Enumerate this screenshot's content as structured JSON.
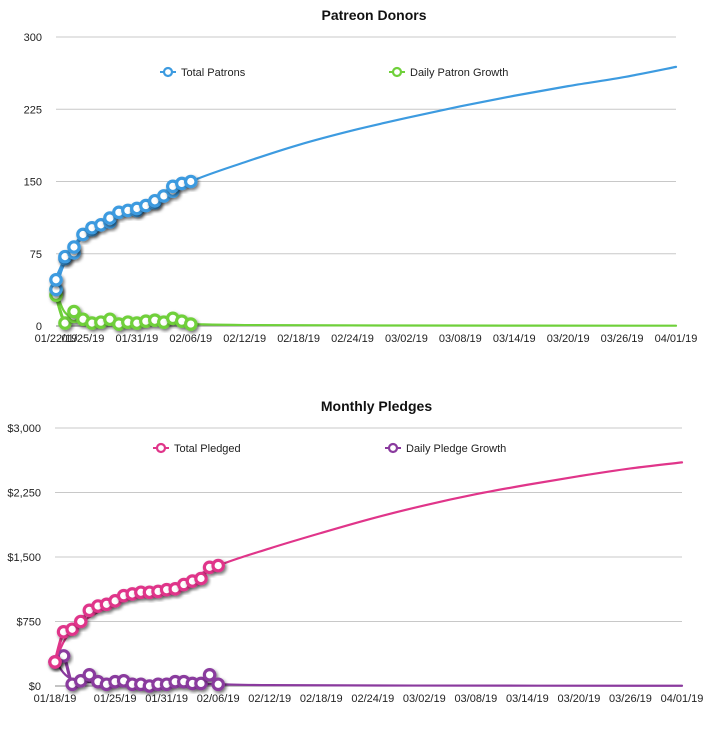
{
  "chart_data": [
    {
      "type": "line",
      "title": "Patreon Donors",
      "xlabel": "",
      "ylabel": "",
      "ylim": [
        0,
        300
      ],
      "yticks": [
        "0",
        "75",
        "150",
        "225",
        "300"
      ],
      "ytick_values": [
        0,
        75,
        150,
        225,
        300
      ],
      "xlim": [
        "2019-01-22",
        "2019-04-01"
      ],
      "xticks": [
        "01/22/19",
        "01/25/19",
        "01/31/19",
        "02/06/19",
        "02/12/19",
        "02/18/19",
        "02/24/19",
        "03/02/19",
        "03/08/19",
        "03/14/19",
        "03/20/19",
        "03/26/19",
        "04/01/19"
      ],
      "xtick_dates": [
        "2019-01-22",
        "2019-01-25",
        "2019-01-31",
        "2019-02-06",
        "2019-02-12",
        "2019-02-18",
        "2019-02-24",
        "2019-03-02",
        "2019-03-08",
        "2019-03-14",
        "2019-03-20",
        "2019-03-26",
        "2019-04-01"
      ],
      "grid": true,
      "legend": "top",
      "series": [
        {
          "name": "Total Patrons",
          "color": "#3d9be0",
          "x": [
            "2019-01-22",
            "2019-01-22",
            "2019-01-23",
            "2019-01-23",
            "2019-01-24",
            "2019-01-24",
            "2019-01-25",
            "2019-01-26",
            "2019-01-26",
            "2019-01-27",
            "2019-01-28",
            "2019-01-28",
            "2019-01-29",
            "2019-01-30",
            "2019-01-31",
            "2019-01-31",
            "2019-02-01",
            "2019-02-02",
            "2019-02-02",
            "2019-02-03",
            "2019-02-04",
            "2019-02-04",
            "2019-02-05",
            "2019-02-06"
          ],
          "y": [
            38,
            48,
            70,
            72,
            76,
            82,
            95,
            100,
            102,
            105,
            108,
            112,
            118,
            120,
            120,
            122,
            125,
            128,
            130,
            135,
            140,
            145,
            148,
            150
          ],
          "trend": {
            "x": [
              "2019-01-22",
              "2019-01-23",
              "2019-01-25",
              "2019-01-28",
              "2019-02-01",
              "2019-02-06",
              "2019-02-12",
              "2019-02-18",
              "2019-02-24",
              "2019-03-02",
              "2019-03-08",
              "2019-03-14",
              "2019-03-20",
              "2019-03-26",
              "2019-04-01"
            ],
            "y": [
              38,
              66,
              92,
              110,
              126,
              150,
              170,
              188,
              203,
              216,
              228,
              239,
              249,
              258,
              269
            ]
          }
        },
        {
          "name": "Daily Patron Growth",
          "color": "#6fd03a",
          "x": [
            "2019-01-22",
            "2019-01-22",
            "2019-01-23",
            "2019-01-24",
            "2019-01-24",
            "2019-01-25",
            "2019-01-26",
            "2019-01-27",
            "2019-01-28",
            "2019-01-29",
            "2019-01-30",
            "2019-01-31",
            "2019-02-01",
            "2019-02-02",
            "2019-02-03",
            "2019-02-04",
            "2019-02-05",
            "2019-02-06"
          ],
          "y": [
            38,
            32,
            3,
            10,
            15,
            7,
            3,
            4,
            7,
            2,
            4,
            3,
            5,
            6,
            4,
            8,
            5,
            2
          ],
          "trend": {
            "x": [
              "2019-01-22",
              "2019-01-23",
              "2019-01-25",
              "2019-01-28",
              "2019-02-01",
              "2019-02-06",
              "2019-02-12",
              "2019-03-01",
              "2019-04-01"
            ],
            "y": [
              38,
              14,
              6,
              4,
              3,
              2,
              1,
              0.5,
              0.3
            ]
          }
        }
      ]
    },
    {
      "type": "line",
      "title": "Monthly Pledges",
      "xlabel": "",
      "ylabel": "",
      "ylim": [
        0,
        3000
      ],
      "yticks": [
        "$0",
        "$750",
        "$1,500",
        "$2,250",
        "$3,000"
      ],
      "ytick_values": [
        0,
        750,
        1500,
        2250,
        3000
      ],
      "xlim": [
        "2019-01-18",
        "2019-04-01"
      ],
      "xticks": [
        "01/18/19",
        "01/25/19",
        "01/31/19",
        "02/06/19",
        "02/12/19",
        "02/18/19",
        "02/24/19",
        "03/02/19",
        "03/08/19",
        "03/14/19",
        "03/20/19",
        "03/26/19",
        "04/01/19"
      ],
      "xtick_dates": [
        "2019-01-18",
        "2019-01-25",
        "2019-01-31",
        "2019-02-06",
        "2019-02-12",
        "2019-02-18",
        "2019-02-24",
        "2019-03-02",
        "2019-03-08",
        "2019-03-14",
        "2019-03-20",
        "2019-03-26",
        "2019-04-01"
      ],
      "grid": true,
      "legend": "top",
      "series": [
        {
          "name": "Total Pledged",
          "color": "#e0358a",
          "x": [
            "2019-01-18",
            "2019-01-19",
            "2019-01-20",
            "2019-01-21",
            "2019-01-22",
            "2019-01-23",
            "2019-01-24",
            "2019-01-25",
            "2019-01-26",
            "2019-01-27",
            "2019-01-28",
            "2019-01-29",
            "2019-01-30",
            "2019-01-31",
            "2019-02-01",
            "2019-02-02",
            "2019-02-03",
            "2019-02-04",
            "2019-02-05",
            "2019-02-06"
          ],
          "y": [
            280,
            630,
            660,
            750,
            880,
            930,
            950,
            990,
            1050,
            1070,
            1090,
            1090,
            1100,
            1120,
            1130,
            1180,
            1220,
            1250,
            1380,
            1400
          ],
          "trend": {
            "x": [
              "2019-01-18",
              "2019-01-20",
              "2019-01-25",
              "2019-01-31",
              "2019-02-06",
              "2019-02-12",
              "2019-02-18",
              "2019-02-24",
              "2019-03-02",
              "2019-03-08",
              "2019-03-14",
              "2019-03-20",
              "2019-03-26",
              "2019-04-01"
            ],
            "y": [
              280,
              650,
              960,
              1120,
              1400,
              1600,
              1780,
              1950,
              2100,
              2230,
              2340,
              2440,
              2530,
              2600
            ]
          }
        },
        {
          "name": "Daily Pledge Growth",
          "color": "#8a3a9e",
          "x": [
            "2019-01-18",
            "2019-01-19",
            "2019-01-20",
            "2019-01-21",
            "2019-01-22",
            "2019-01-23",
            "2019-01-24",
            "2019-01-25",
            "2019-01-26",
            "2019-01-27",
            "2019-01-28",
            "2019-01-29",
            "2019-01-30",
            "2019-01-31",
            "2019-02-01",
            "2019-02-02",
            "2019-02-03",
            "2019-02-04",
            "2019-02-05",
            "2019-02-06"
          ],
          "y": [
            280,
            350,
            20,
            60,
            130,
            50,
            20,
            50,
            60,
            20,
            20,
            0,
            20,
            20,
            50,
            50,
            30,
            30,
            130,
            20
          ],
          "trend": {
            "x": [
              "2019-01-18",
              "2019-01-20",
              "2019-01-25",
              "2019-01-31",
              "2019-02-06",
              "2019-02-12",
              "2019-03-01",
              "2019-04-01"
            ],
            "y": [
              300,
              80,
              40,
              30,
              20,
              10,
              5,
              3
            ]
          }
        }
      ]
    }
  ]
}
